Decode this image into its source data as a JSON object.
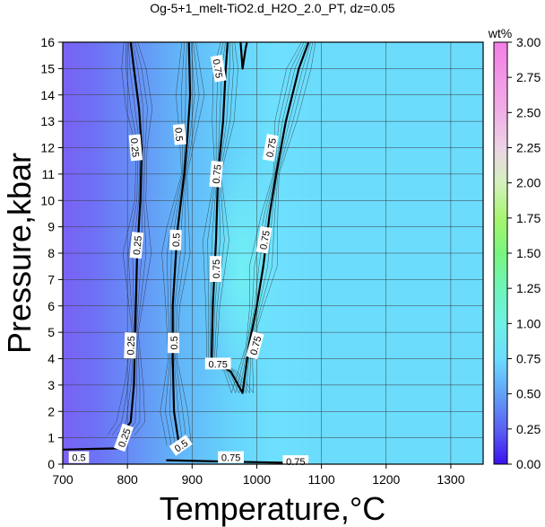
{
  "chart_data": {
    "type": "heatmap",
    "title": "Og-5+1_melt-TiO2.d_H2O_2.0_PT, dz=0.05",
    "xlabel": "Temperature,°C",
    "ylabel": "Pressure,kbar",
    "xlim": [
      700,
      1350
    ],
    "ylim": [
      0,
      16
    ],
    "x_ticks": [
      "700",
      "800",
      "900",
      "1000",
      "1100",
      "1200",
      "1300"
    ],
    "y_ticks": [
      "0",
      "1",
      "2",
      "3",
      "4",
      "5",
      "6",
      "7",
      "8",
      "9",
      "10",
      "11",
      "12",
      "13",
      "14",
      "15",
      "16"
    ],
    "grid": true,
    "colorbar": {
      "label": "wt%",
      "range": [
        0,
        3
      ],
      "ticks": [
        "0.00",
        "0.25",
        "0.50",
        "0.75",
        "1.00",
        "1.25",
        "1.50",
        "1.75",
        "2.00",
        "2.25",
        "2.50",
        "2.75",
        "3.00"
      ]
    },
    "contours": [
      {
        "level": "0.25",
        "points": [
          [
            790,
            1.1
          ],
          [
            805,
            1.6
          ],
          [
            810,
            3
          ],
          [
            812,
            5
          ],
          [
            815,
            8
          ],
          [
            820,
            10
          ],
          [
            822,
            12
          ],
          [
            818,
            13.5
          ],
          [
            810,
            15
          ],
          [
            805,
            16
          ]
        ]
      },
      {
        "level": "0.5",
        "points": [
          [
            880,
            0.7
          ],
          [
            872,
            2
          ],
          [
            870,
            4
          ],
          [
            870,
            6
          ],
          [
            875,
            8
          ],
          [
            878,
            9
          ],
          [
            888,
            11
          ],
          [
            893,
            12.5
          ],
          [
            897,
            14
          ],
          [
            895,
            16
          ]
        ]
      },
      {
        "level": "0.75",
        "points": [
          [
            930,
            3.9
          ],
          [
            932,
            6
          ],
          [
            937,
            8.5
          ],
          [
            940,
            11
          ],
          [
            948,
            13
          ],
          [
            952,
            15
          ],
          [
            955,
            16
          ]
        ]
      },
      {
        "level": "0.75",
        "points": [
          [
            975,
            16
          ],
          [
            978,
            15
          ],
          [
            983,
            15.8
          ],
          [
            985,
            16
          ]
        ]
      },
      {
        "level": "0.75",
        "points": [
          [
            935,
            3.9
          ],
          [
            960,
            3.5
          ],
          [
            978,
            2.7
          ],
          [
            988,
            4.5
          ],
          [
            1000,
            6
          ],
          [
            1010,
            7.5
          ],
          [
            1020,
            9.5
          ],
          [
            1030,
            11
          ],
          [
            1045,
            13
          ],
          [
            1065,
            15
          ],
          [
            1080,
            16
          ]
        ]
      },
      {
        "level": "0.5",
        "points": [
          [
            700,
            0.55
          ],
          [
            745,
            0.58
          ],
          [
            790,
            0.6
          ]
        ]
      },
      {
        "level": "0.75",
        "points": [
          [
            860,
            0.15
          ],
          [
            950,
            0.1
          ],
          [
            1050,
            0.05
          ],
          [
            1080,
            0.02
          ]
        ]
      }
    ],
    "contour_labels": [
      {
        "text": "0.25",
        "x": 812,
        "y": 12.0,
        "rot": 85
      },
      {
        "text": "0.25",
        "x": 815,
        "y": 8.3,
        "rot": -85
      },
      {
        "text": "0.25",
        "x": 805,
        "y": 4.5,
        "rot": -88
      },
      {
        "text": "0.25",
        "x": 795,
        "y": 1.0,
        "rot": -70
      },
      {
        "text": "0.5",
        "x": 880,
        "y": 12.5,
        "rot": 85
      },
      {
        "text": "0.5",
        "x": 875,
        "y": 8.5,
        "rot": -88
      },
      {
        "text": "0.5",
        "x": 872,
        "y": 4.6,
        "rot": -90
      },
      {
        "text": "0.5",
        "x": 883,
        "y": 0.7,
        "rot": -35
      },
      {
        "text": "0.5",
        "x": 725,
        "y": 0.25,
        "rot": 0
      },
      {
        "text": "0.75",
        "x": 940,
        "y": 15.0,
        "rot": 80
      },
      {
        "text": "0.75",
        "x": 938,
        "y": 11.0,
        "rot": -85
      },
      {
        "text": "0.75",
        "x": 937,
        "y": 7.4,
        "rot": -90
      },
      {
        "text": "0.75",
        "x": 940,
        "y": 3.8,
        "rot": 0
      },
      {
        "text": "0.75",
        "x": 1022,
        "y": 12.0,
        "rot": -80
      },
      {
        "text": "0.75",
        "x": 1012,
        "y": 8.5,
        "rot": -80
      },
      {
        "text": "0.75",
        "x": 998,
        "y": 4.5,
        "rot": -75
      },
      {
        "text": "0.75",
        "x": 960,
        "y": 0.25,
        "rot": 0
      },
      {
        "text": "0.75",
        "x": 1060,
        "y": 0.1,
        "rot": 0
      }
    ]
  }
}
